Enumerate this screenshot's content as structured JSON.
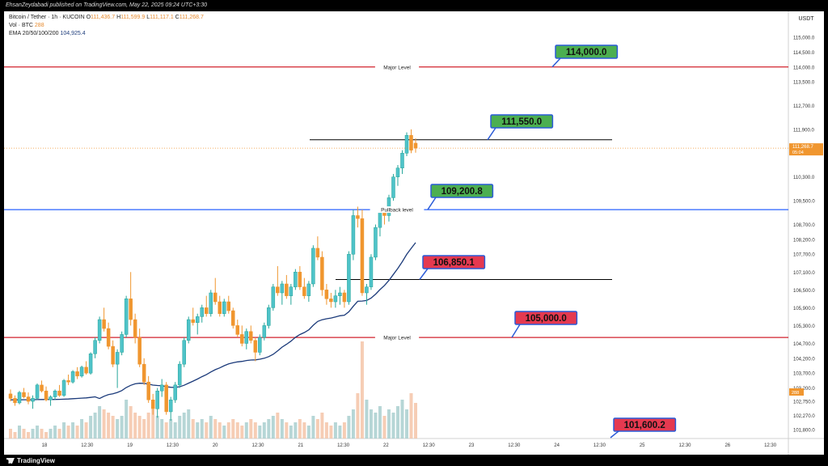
{
  "publish_line": "EhsanZeydabadi published on TradingView.com, May 22, 2025 09:24 UTC+3:30",
  "brand": "TradingView",
  "header": {
    "symbol": "Bitcoin / Tether · 1h · KUCOIN",
    "o_label": "O",
    "o": "111,436.7",
    "h_label": "H",
    "h": "111,599.9",
    "l_label": "L",
    "l": "111,117.1",
    "c_label": "C",
    "c": "111,268.7",
    "vol_label": "Vol · BTC",
    "vol": "288",
    "ema_label": "EMA 20/50/100/200",
    "ema": "104,925.4"
  },
  "colors": {
    "up": "#26a69a",
    "up_fill": "#4fc3c9",
    "down": "#f0962f",
    "red_level": "#d2222d",
    "blue_level": "#2962ff",
    "black_level": "#000000",
    "ema": "#1b3a7a",
    "green_box": "#4caf50",
    "red_box": "#e53950",
    "box_border": "#2a5bd7"
  },
  "chart_data": {
    "type": "candlestick",
    "title": "",
    "currency": "USDT",
    "ylim": [
      101500,
      115600
    ],
    "y_ticks": [
      "115,000.0",
      "114,500.0",
      "114,000.0",
      "113,500.0",
      "112,700.0",
      "111,900.0",
      "111,268.7",
      "110,300.0",
      "109,500.0",
      "108,700.0",
      "108,200.0",
      "107,700.0",
      "107,100.0",
      "106,500.0",
      "105,900.0",
      "105,300.0",
      "104,700.0",
      "104,200.0",
      "103,700.0",
      "103,200.0",
      "102,750.0",
      "102,270.0",
      "101,800.0"
    ],
    "y_tick_values": [
      115000,
      114500,
      114000,
      113500,
      112700,
      111900,
      111268.7,
      110300,
      109500,
      108700,
      108200,
      107700,
      107100,
      106500,
      105900,
      105300,
      104700,
      104200,
      103700,
      103200,
      102750,
      102270,
      101800
    ],
    "price_label": "111,268.7",
    "price_timer": "05:04",
    "vol_label": "288",
    "x_ticks": [
      "18",
      "12:30",
      "19",
      "12:30",
      "20",
      "12:30",
      "21",
      "12:30",
      "22",
      "12:30",
      "23",
      "12:30",
      "24",
      "12:30",
      "25",
      "12:30",
      "26",
      "12:30"
    ],
    "levels": [
      {
        "name": "Major Level",
        "price": 114000,
        "style": "red",
        "label": "Major Level"
      },
      {
        "name": "Pullback level",
        "price": 109200.8,
        "style": "blue",
        "label": "Pullback level"
      },
      {
        "name": "Major Level",
        "price": 104900,
        "style": "red",
        "label": "Major Level"
      },
      {
        "name": "",
        "price": 111550,
        "style": "black",
        "label": ""
      },
      {
        "name": "",
        "price": 106850,
        "style": "black",
        "label": ""
      }
    ],
    "callouts": [
      {
        "text": "114,000.0",
        "kind": "green"
      },
      {
        "text": "111,550.0",
        "kind": "green"
      },
      {
        "text": "109,200.8",
        "kind": "green"
      },
      {
        "text": "106,850.1",
        "kind": "red"
      },
      {
        "text": "105,000.0",
        "kind": "red"
      },
      {
        "text": "101,600.2",
        "kind": "red"
      }
    ],
    "candles": [
      [
        103000,
        103150,
        102750,
        102850
      ],
      [
        102850,
        102950,
        102600,
        102700
      ],
      [
        102700,
        103100,
        102650,
        103050
      ],
      [
        103050,
        103200,
        102850,
        102900
      ],
      [
        102900,
        103050,
        102650,
        102750
      ],
      [
        102750,
        102950,
        102500,
        102850
      ],
      [
        102850,
        103350,
        102800,
        103300
      ],
      [
        103300,
        103450,
        103050,
        103100
      ],
      [
        103100,
        103250,
        102750,
        102800
      ],
      [
        102800,
        102950,
        102600,
        102900
      ],
      [
        102900,
        103150,
        102800,
        103100
      ],
      [
        103100,
        103300,
        102900,
        102950
      ],
      [
        102950,
        103500,
        102900,
        103450
      ],
      [
        103450,
        103650,
        103300,
        103400
      ],
      [
        103400,
        103800,
        103350,
        103750
      ],
      [
        103750,
        103900,
        103500,
        103600
      ],
      [
        103600,
        103950,
        103550,
        103900
      ],
      [
        103900,
        104100,
        103650,
        103700
      ],
      [
        103700,
        104400,
        103650,
        104350
      ],
      [
        104350,
        104900,
        104200,
        104800
      ],
      [
        104800,
        105600,
        104700,
        105500
      ],
      [
        105500,
        105900,
        105100,
        105200
      ],
      [
        105200,
        105400,
        104500,
        104600
      ],
      [
        104600,
        104800,
        103900,
        104000
      ],
      [
        104000,
        104500,
        103200,
        104400
      ],
      [
        104400,
        105100,
        104300,
        105000
      ],
      [
        105000,
        106300,
        104900,
        106200
      ],
      [
        106200,
        107100,
        105300,
        105500
      ],
      [
        105500,
        105700,
        104700,
        104900
      ],
      [
        104900,
        105200,
        103900,
        104000
      ],
      [
        104000,
        104200,
        103300,
        103400
      ],
      [
        103400,
        103600,
        102700,
        102800
      ],
      [
        102800,
        103000,
        102300,
        102500
      ],
      [
        102500,
        103200,
        102200,
        103100
      ],
      [
        103100,
        103500,
        102900,
        103300
      ],
      [
        103300,
        103400,
        102300,
        102400
      ],
      [
        102400,
        102900,
        102100,
        102800
      ],
      [
        102800,
        103400,
        102700,
        103300
      ],
      [
        103300,
        104100,
        103200,
        104000
      ],
      [
        104000,
        104900,
        103900,
        104800
      ],
      [
        104800,
        105600,
        104700,
        105500
      ],
      [
        105500,
        105900,
        105300,
        105400
      ],
      [
        105400,
        105700,
        105000,
        105600
      ],
      [
        105600,
        106000,
        105400,
        105900
      ],
      [
        105900,
        106300,
        105600,
        105700
      ],
      [
        105700,
        106500,
        105600,
        106400
      ],
      [
        106400,
        106900,
        106000,
        106100
      ],
      [
        106100,
        106300,
        105600,
        105700
      ],
      [
        105700,
        106200,
        105600,
        106100
      ],
      [
        106100,
        106300,
        105700,
        105800
      ],
      [
        105800,
        105900,
        105200,
        105300
      ],
      [
        105300,
        105500,
        104900,
        105000
      ],
      [
        105000,
        105300,
        104600,
        104700
      ],
      [
        104700,
        105200,
        104500,
        105100
      ],
      [
        105100,
        105300,
        104700,
        104800
      ],
      [
        104800,
        104900,
        104100,
        104400
      ],
      [
        104400,
        105000,
        104300,
        104900
      ],
      [
        104900,
        105400,
        104800,
        105300
      ],
      [
        105300,
        106000,
        105200,
        105900
      ],
      [
        105900,
        106700,
        105800,
        106600
      ],
      [
        106600,
        107300,
        106300,
        106400
      ],
      [
        106400,
        106800,
        106000,
        106700
      ],
      [
        106700,
        107000,
        106200,
        106300
      ],
      [
        106300,
        106700,
        106000,
        106600
      ],
      [
        106600,
        107200,
        106500,
        107100
      ],
      [
        107100,
        107300,
        106500,
        106600
      ],
      [
        106600,
        106900,
        106200,
        106300
      ],
      [
        106300,
        106800,
        106100,
        106700
      ],
      [
        106700,
        108000,
        106600,
        107900
      ],
      [
        107900,
        108300,
        107500,
        107600
      ],
      [
        107600,
        107800,
        106300,
        106500
      ],
      [
        106500,
        106700,
        106000,
        106200
      ],
      [
        106200,
        106400,
        105900,
        106100
      ],
      [
        106100,
        106500,
        105900,
        106300
      ],
      [
        106300,
        106600,
        106000,
        106400
      ],
      [
        106400,
        106500,
        105900,
        106100
      ],
      [
        106100,
        107800,
        106000,
        107700
      ],
      [
        107700,
        109200,
        107500,
        109000
      ],
      [
        109000,
        109300,
        108600,
        108900
      ],
      [
        108900,
        109200,
        106300,
        106400
      ],
      [
        106400,
        106700,
        106000,
        106600
      ],
      [
        106600,
        107700,
        106500,
        107600
      ],
      [
        107600,
        108700,
        107500,
        108600
      ],
      [
        108600,
        109200,
        108300,
        109100
      ],
      [
        109100,
        109300,
        108700,
        109000
      ],
      [
        109000,
        109700,
        108800,
        109600
      ],
      [
        109600,
        110400,
        109500,
        110300
      ],
      [
        110300,
        110700,
        110000,
        110600
      ],
      [
        110600,
        111200,
        110400,
        111100
      ],
      [
        111100,
        111800,
        111000,
        111700
      ],
      [
        111700,
        111900,
        111100,
        111200
      ],
      [
        111436.7,
        111599.9,
        111117.1,
        111268.7
      ]
    ],
    "volumes": [
      3,
      2,
      4,
      3,
      2,
      3,
      4,
      3,
      2,
      3,
      4,
      3,
      5,
      4,
      5,
      4,
      6,
      5,
      7,
      8,
      10,
      9,
      8,
      7,
      6,
      7,
      12,
      10,
      8,
      7,
      6,
      8,
      9,
      7,
      6,
      5,
      6,
      5,
      7,
      8,
      9,
      6,
      5,
      6,
      5,
      7,
      6,
      5,
      4,
      5,
      6,
      5,
      4,
      5,
      6,
      5,
      4,
      5,
      6,
      7,
      8,
      6,
      5,
      4,
      5,
      6,
      5,
      4,
      7,
      6,
      8,
      5,
      4,
      5,
      4,
      5,
      7,
      9,
      14,
      30,
      12,
      9,
      8,
      10,
      7,
      9,
      8,
      10,
      12,
      9,
      14,
      11
    ]
  }
}
